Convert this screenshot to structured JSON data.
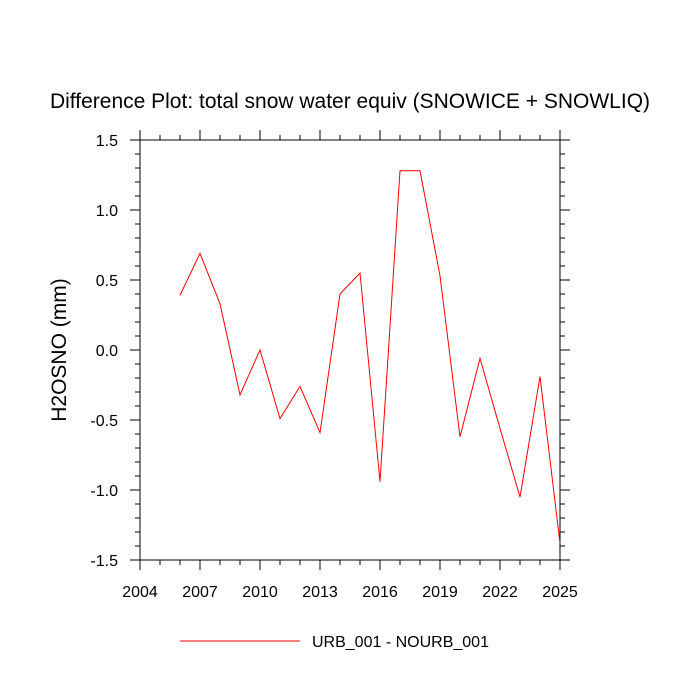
{
  "chart_data": {
    "type": "line",
    "title": "Difference Plot: total snow water equiv (SNOWICE + SNOWLIQ)",
    "xlabel": "",
    "ylabel": "H2OSNO  (mm)",
    "xlim": [
      2004,
      2025
    ],
    "ylim": [
      -1.5,
      1.5
    ],
    "x_ticks": [
      2004,
      2007,
      2010,
      2013,
      2016,
      2019,
      2022,
      2025
    ],
    "x_tick_labels": [
      "2004",
      "2007",
      "2010",
      "2013",
      "2016",
      "2019",
      "2022",
      "2025"
    ],
    "y_ticks": [
      1.5,
      1.0,
      0.5,
      0.0,
      -0.5,
      -1.0,
      -1.5
    ],
    "y_tick_labels": [
      "1.5",
      "1.0",
      "0.5",
      "0.0",
      "-0.5",
      "-1.0",
      "-1.5"
    ],
    "grid": false,
    "legend_position": "bottom-center",
    "series": [
      {
        "name": "URB_001 - NOURB_001",
        "color": "#ff0000",
        "x": [
          2006,
          2007,
          2008,
          2009,
          2010,
          2011,
          2012,
          2013,
          2014,
          2015,
          2016,
          2017,
          2018,
          2019,
          2020,
          2021,
          2022,
          2023,
          2024,
          2025
        ],
        "values": [
          0.39,
          0.69,
          0.33,
          -0.32,
          0.0,
          -0.49,
          -0.26,
          -0.59,
          0.4,
          0.55,
          -0.94,
          1.28,
          1.28,
          0.53,
          -0.62,
          -0.06,
          -0.56,
          -1.05,
          -0.19,
          -1.38
        ]
      }
    ]
  }
}
